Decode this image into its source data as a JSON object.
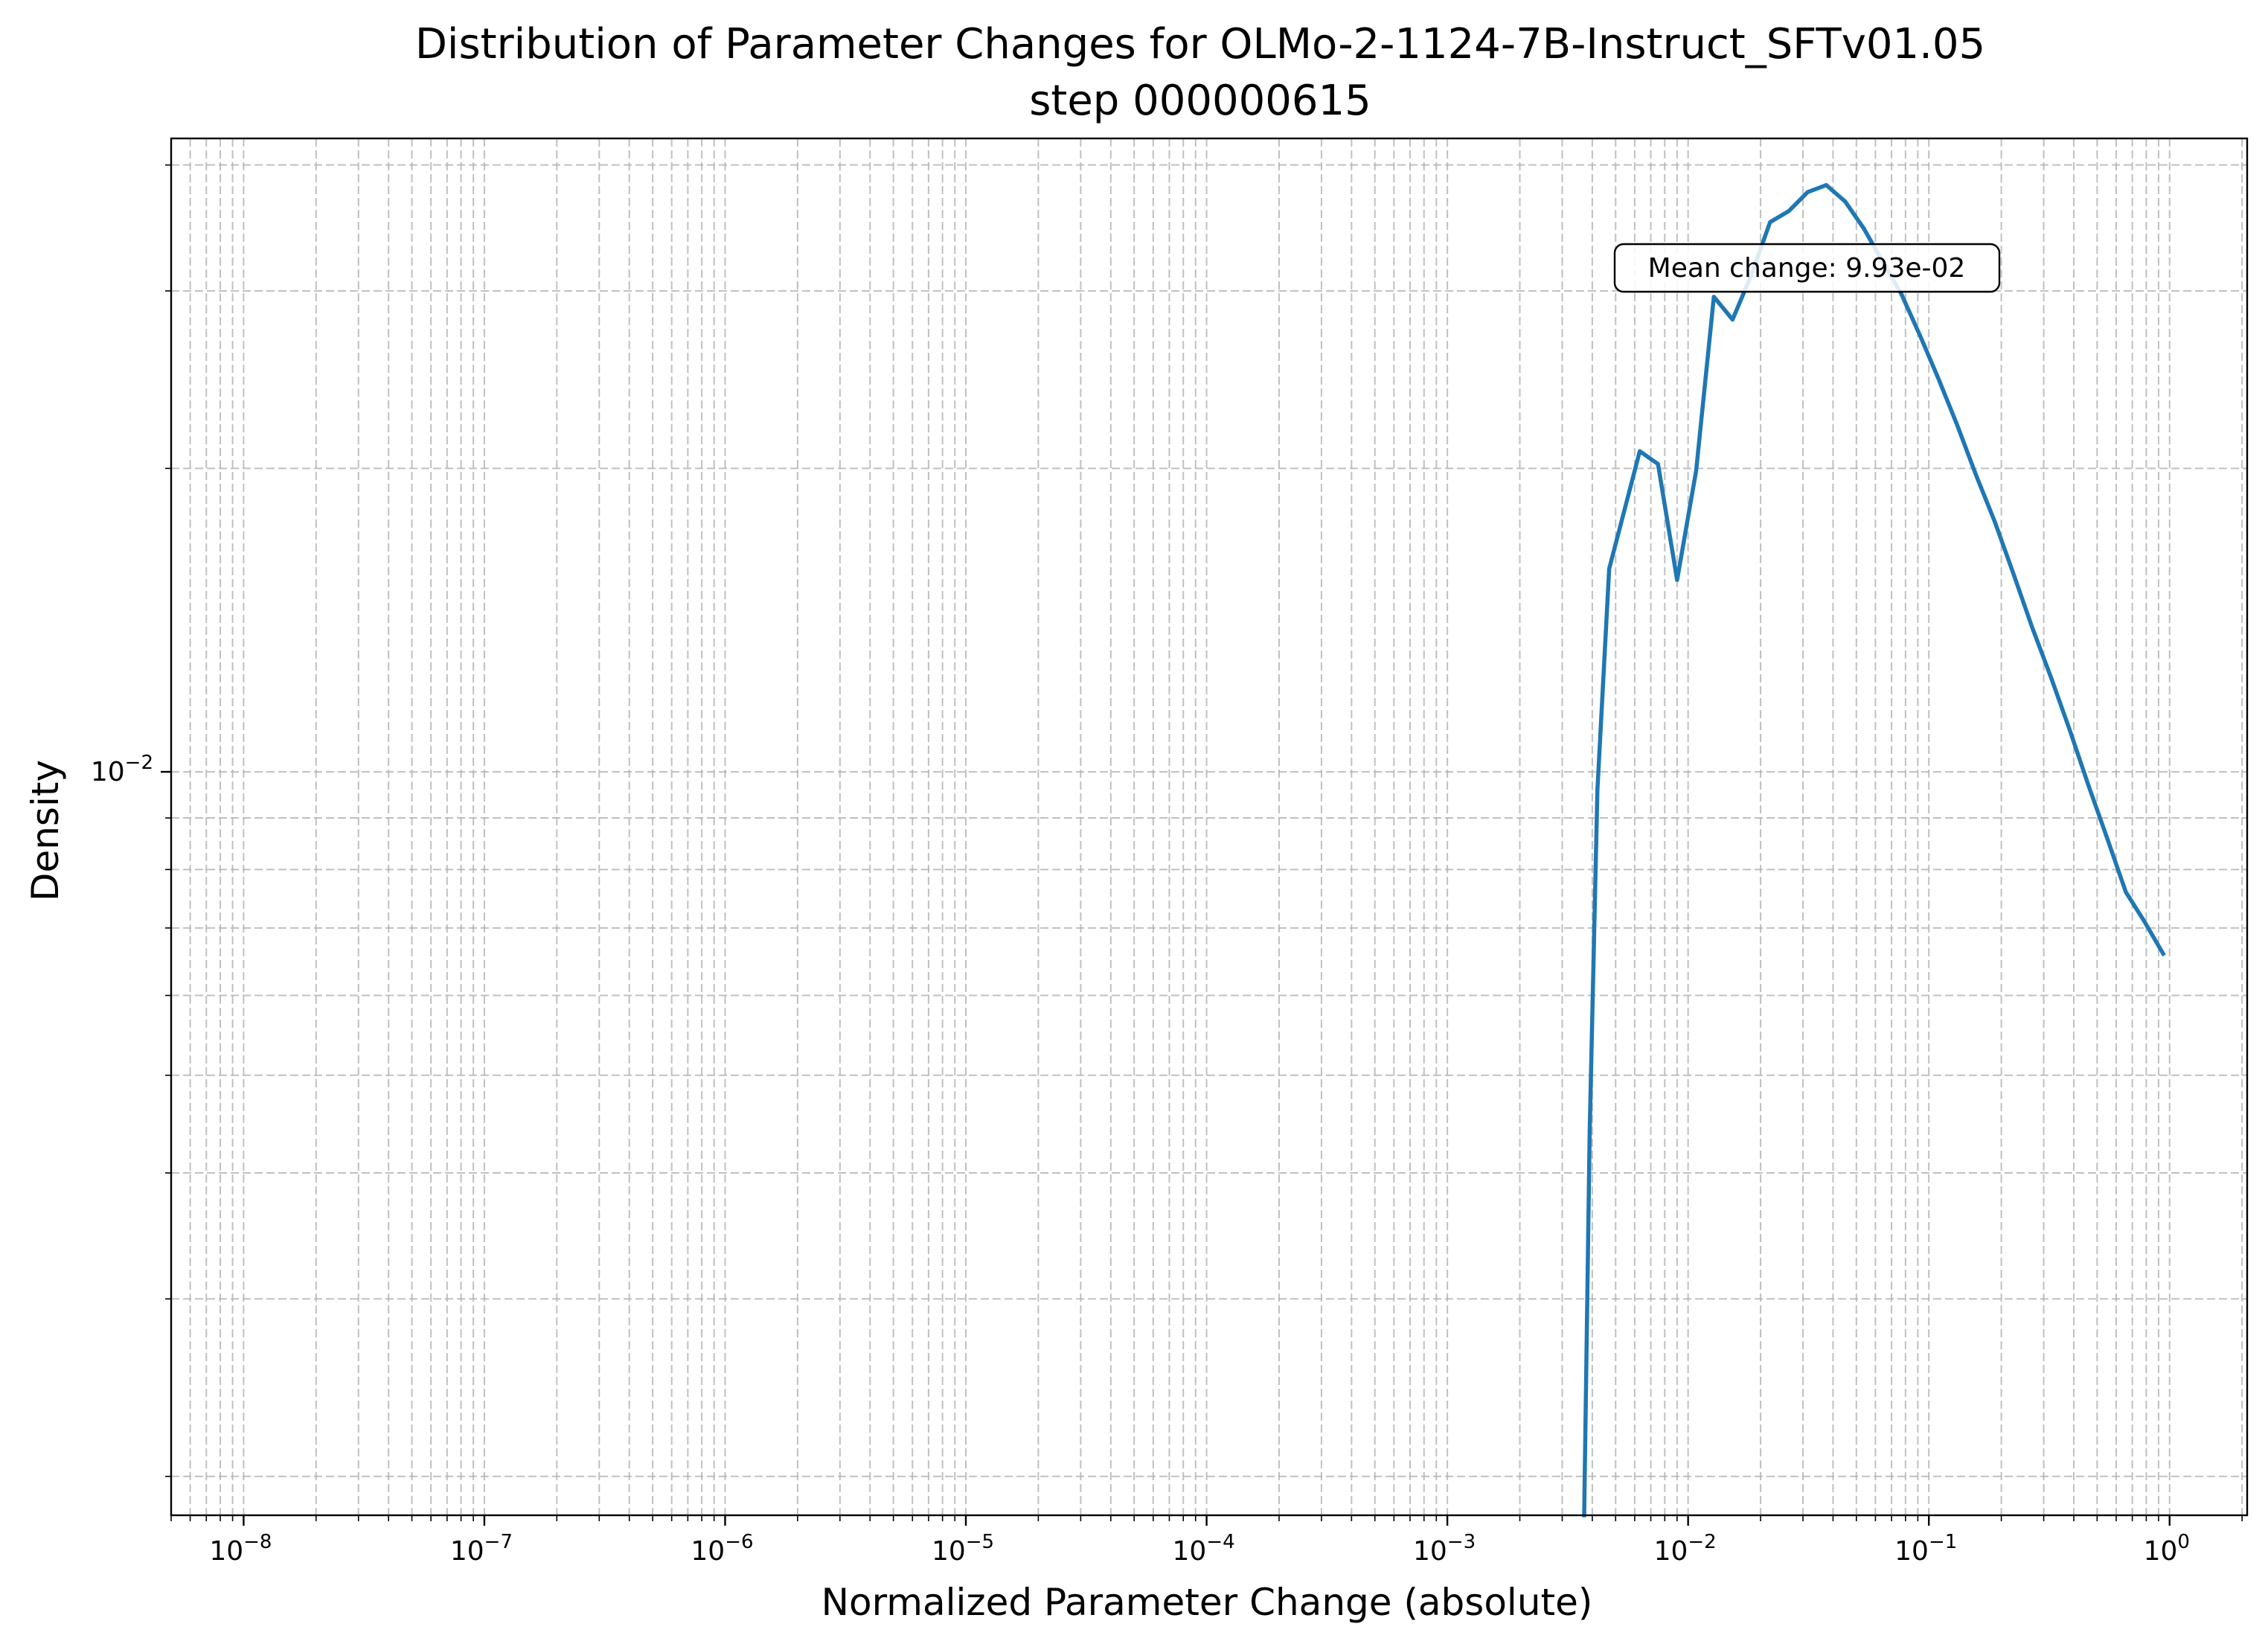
{
  "chart_data": {
    "type": "line",
    "title": "Distribution of Parameter Changes for OLMo-2-1124-7B-Instruct_SFTv01.05",
    "subtitle": "step 000000615",
    "xlabel": "Normalized Parameter Change (absolute)",
    "ylabel": "Density",
    "xscale": "log",
    "yscale": "log",
    "xlim": [
      5e-09,
      2.1
    ],
    "ylim": [
      0.00183,
      0.0425
    ],
    "xtick_labels": [
      "10^-8",
      "10^-7",
      "10^-6",
      "10^-5",
      "10^-4",
      "10^-3",
      "10^-2",
      "10^-1",
      "10^0"
    ],
    "ytick_labels": [
      "10^-2"
    ],
    "grid": true,
    "grid_style": "dashed",
    "line_color": "#1f77b4",
    "series": [
      {
        "x": [
          0.0037,
          0.0039,
          0.0042,
          0.0047,
          0.0063,
          0.0075,
          0.009,
          0.0108,
          0.0128,
          0.0153,
          0.0183,
          0.0219,
          0.0262,
          0.0314,
          0.0375,
          0.0449,
          0.0537,
          0.0642,
          0.0768,
          0.0919,
          0.11,
          0.131,
          0.157,
          0.188,
          0.225,
          0.269,
          0.322,
          0.385,
          0.46,
          0.55,
          0.658,
          0.787,
          0.94
        ],
        "y": [
          0.00183,
          0.0044,
          0.0096,
          0.0159,
          0.0208,
          0.0202,
          0.0155,
          0.0199,
          0.0296,
          0.0281,
          0.0311,
          0.0351,
          0.036,
          0.0376,
          0.0382,
          0.0368,
          0.0346,
          0.0321,
          0.0298,
          0.0271,
          0.0245,
          0.0221,
          0.0197,
          0.0177,
          0.0157,
          0.0139,
          0.0124,
          0.011,
          0.0097,
          0.0086,
          0.0076,
          0.0071,
          0.0066
        ]
      }
    ],
    "annotation": "Mean change: 9.93e-02"
  }
}
